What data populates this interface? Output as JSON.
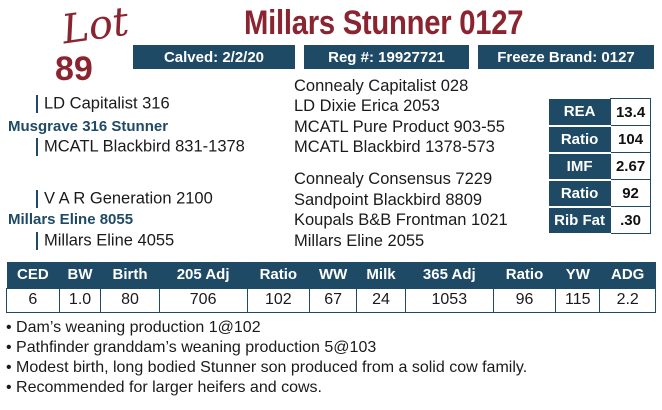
{
  "lot": {
    "word": "Lot",
    "number": "89"
  },
  "title": "Millars Stunner 0127",
  "info_bar": {
    "calved": "Calved: 2/2/20",
    "reg": "Reg #: 19927721",
    "freeze_brand": "Freeze Brand: 0127"
  },
  "pedigree": {
    "sire_sire": "LD Capitalist 316",
    "sire": "Musgrave 316 Stunner",
    "sire_dam": "MCATL Blackbird 831-1378",
    "dam_sire": "V A R Generation 2100",
    "dam": "Millars Eline 8055",
    "dam_dam": "Millars Eline 4055",
    "ggp": [
      "Connealy Capitalist 028",
      "LD Dixie Erica 2053",
      "MCATL Pure Product 903-55",
      "MCATL Blackbird 1378-573",
      "Connealy Consensus 7229",
      "Sandpoint Blackbird 8809",
      "Koupals B&B Frontman 1021",
      "Millars Eline 2055"
    ]
  },
  "carcass": [
    {
      "label": "REA",
      "value": "13.4"
    },
    {
      "label": "Ratio",
      "value": "104"
    },
    {
      "label": "IMF",
      "value": "2.67"
    },
    {
      "label": "Ratio",
      "value": "92"
    },
    {
      "label": "Rib Fat",
      "value": ".30"
    }
  ],
  "epd": {
    "headers": [
      "CED",
      "BW",
      "Birth",
      "205 Adj",
      "Ratio",
      "WW",
      "Milk",
      "365 Adj",
      "Ratio",
      "YW",
      "ADG"
    ],
    "values": [
      "6",
      "1.0",
      "80",
      "706",
      "102",
      "67",
      "24",
      "1053",
      "96",
      "115",
      "2.2"
    ]
  },
  "notes": [
    "• Dam’s weaning production 1@102",
    "• Pathfinder granddam’s weaning production 5@103",
    "• Modest birth, long bodied Stunner son produced from a solid cow family.",
    "• Recommended for larger heifers and cows."
  ]
}
